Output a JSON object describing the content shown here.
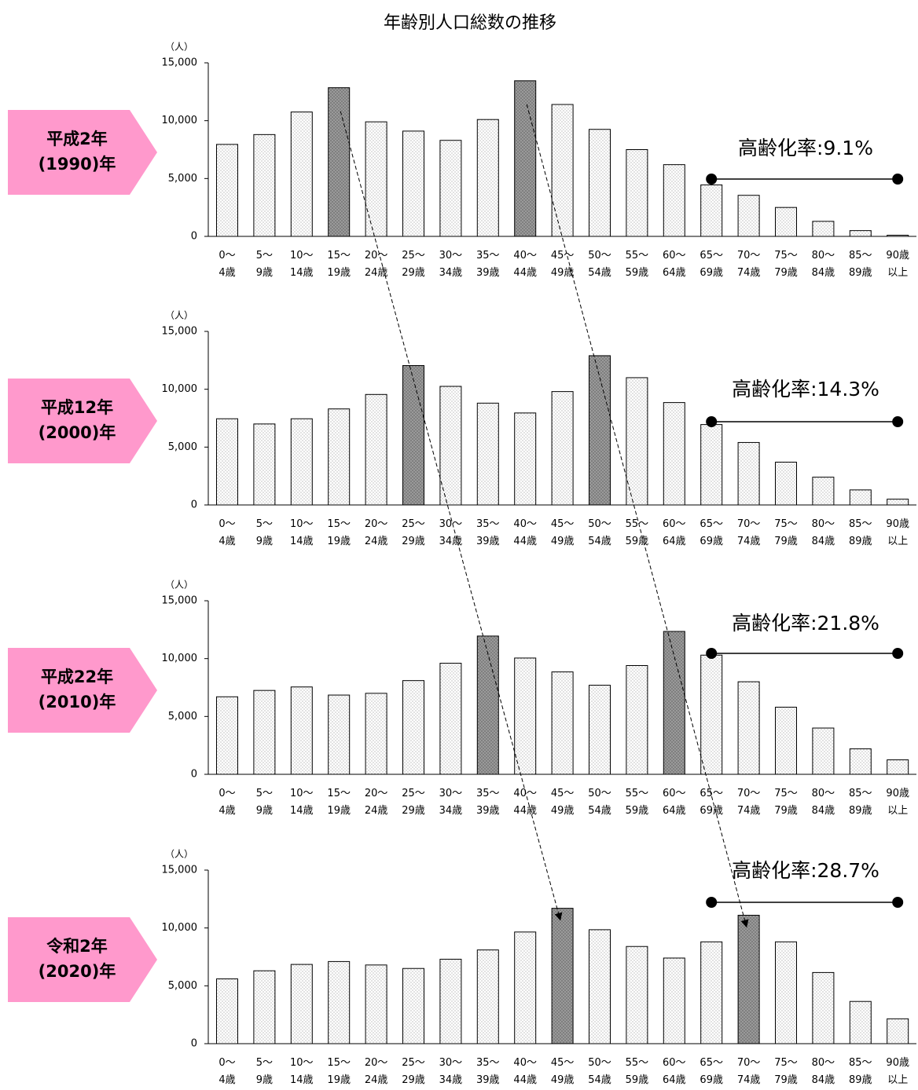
{
  "title": "年齢別人口総数の推移",
  "chart_data": [
    {
      "type": "bar",
      "label_lines": [
        "平成2年",
        "(1990)年"
      ],
      "y_label": "（人）",
      "annotation": "高齢化率:9.1%",
      "categories": [
        "0〜\n4歳",
        "5〜\n9歳",
        "10〜\n14歳",
        "15〜\n19歳",
        "20〜\n24歳",
        "25〜\n29歳",
        "30〜\n34歳",
        "35〜\n39歳",
        "40〜\n44歳",
        "45〜\n49歳",
        "50〜\n54歳",
        "55〜\n59歳",
        "60〜\n64歳",
        "65〜\n69歳",
        "70〜\n74歳",
        "75〜\n79歳",
        "80〜\n84歳",
        "85〜\n89歳",
        "90歳\n以上"
      ],
      "values": [
        7950,
        8800,
        10750,
        12850,
        9900,
        9100,
        8300,
        10100,
        13450,
        11400,
        9250,
        7500,
        6200,
        4450,
        3550,
        2500,
        1300,
        500,
        100
      ],
      "highlight": [
        3,
        8
      ],
      "color": "#ffffff",
      "highlight_color": "#7f7f7f",
      "ylim": [
        0,
        15000
      ],
      "yticks": [
        0,
        {
          "value": 5000,
          "label": "5,000"
        },
        {
          "value": 10000,
          "label": "10,000"
        },
        {
          "value": 15000,
          "label": "15,000"
        }
      ],
      "grid": false
    },
    {
      "type": "bar",
      "label_lines": [
        "平成12年",
        "(2000)年"
      ],
      "y_label": "（人）",
      "annotation": "高齢化率:14.3%",
      "categories": [
        "0〜\n4歳",
        "5〜\n9歳",
        "10〜\n14歳",
        "15〜\n19歳",
        "20〜\n24歳",
        "25〜\n29歳",
        "30〜\n34歳",
        "35〜\n39歳",
        "40〜\n44歳",
        "45〜\n49歳",
        "50〜\n54歳",
        "55〜\n59歳",
        "60〜\n64歳",
        "65〜\n69歳",
        "70〜\n74歳",
        "75〜\n79歳",
        "80〜\n84歳",
        "85〜\n89歳",
        "90歳\n以上"
      ],
      "values": [
        7450,
        7000,
        7450,
        8300,
        9550,
        12050,
        10250,
        8800,
        7950,
        9800,
        12900,
        11000,
        8850,
        6950,
        5400,
        3700,
        2400,
        1300,
        500
      ],
      "highlight": [
        5,
        10
      ],
      "color": "#ffffff",
      "highlight_color": "#7f7f7f",
      "ylim": [
        0,
        15000
      ],
      "yticks": [
        0,
        {
          "value": 5000,
          "label": "5,000"
        },
        {
          "value": 10000,
          "label": "10,000"
        },
        {
          "value": 15000,
          "label": "15,000"
        }
      ],
      "grid": false
    },
    {
      "type": "bar",
      "label_lines": [
        "平成22年",
        "(2010)年"
      ],
      "y_label": "（人）",
      "annotation": "高齢化率:21.8%",
      "categories": [
        "0〜\n4歳",
        "5〜\n9歳",
        "10〜\n14歳",
        "15〜\n19歳",
        "20〜\n24歳",
        "25〜\n29歳",
        "30〜\n34歳",
        "35〜\n39歳",
        "40〜\n44歳",
        "45〜\n49歳",
        "50〜\n54歳",
        "55〜\n59歳",
        "60〜\n64歳",
        "65〜\n69歳",
        "70〜\n74歳",
        "75〜\n79歳",
        "80〜\n84歳",
        "85〜\n89歳",
        "90歳\n以上"
      ],
      "values": [
        6700,
        7250,
        7550,
        6850,
        7000,
        8100,
        9600,
        11950,
        10050,
        8850,
        7700,
        9400,
        12350,
        10300,
        8000,
        5800,
        4000,
        2200,
        1250
      ],
      "highlight": [
        7,
        12
      ],
      "color": "#ffffff",
      "highlight_color": "#7f7f7f",
      "ylim": [
        0,
        15000
      ],
      "yticks": [
        0,
        {
          "value": 5000,
          "label": "5,000"
        },
        {
          "value": 10000,
          "label": "10,000"
        },
        {
          "value": 15000,
          "label": "15,000"
        }
      ],
      "grid": false
    },
    {
      "type": "bar",
      "label_lines": [
        "令和2年",
        "(2020)年"
      ],
      "y_label": "（人）",
      "annotation": "高齢化率:28.7%",
      "categories": [
        "0〜\n4歳",
        "5〜\n9歳",
        "10〜\n14歳",
        "15〜\n19歳",
        "20〜\n24歳",
        "25〜\n29歳",
        "30〜\n34歳",
        "35〜\n39歳",
        "40〜\n44歳",
        "45〜\n49歳",
        "50〜\n54歳",
        "55〜\n59歳",
        "60〜\n64歳",
        "65〜\n69歳",
        "70〜\n74歳",
        "75〜\n79歳",
        "80〜\n84歳",
        "85〜\n89歳",
        "90歳\n以上"
      ],
      "values": [
        5600,
        6300,
        6850,
        7100,
        6800,
        6500,
        7300,
        8100,
        9650,
        11700,
        9850,
        8400,
        7400,
        8800,
        11100,
        8800,
        6150,
        3650,
        2150
      ],
      "highlight": [
        9,
        14
      ],
      "color": "#ffffff",
      "highlight_color": "#7f7f7f",
      "ylim": [
        0,
        15000
      ],
      "yticks": [
        0,
        {
          "value": 5000,
          "label": "5,000"
        },
        {
          "value": 10000,
          "label": "10,000"
        },
        {
          "value": 15000,
          "label": "15,000"
        }
      ],
      "grid": false
    }
  ]
}
